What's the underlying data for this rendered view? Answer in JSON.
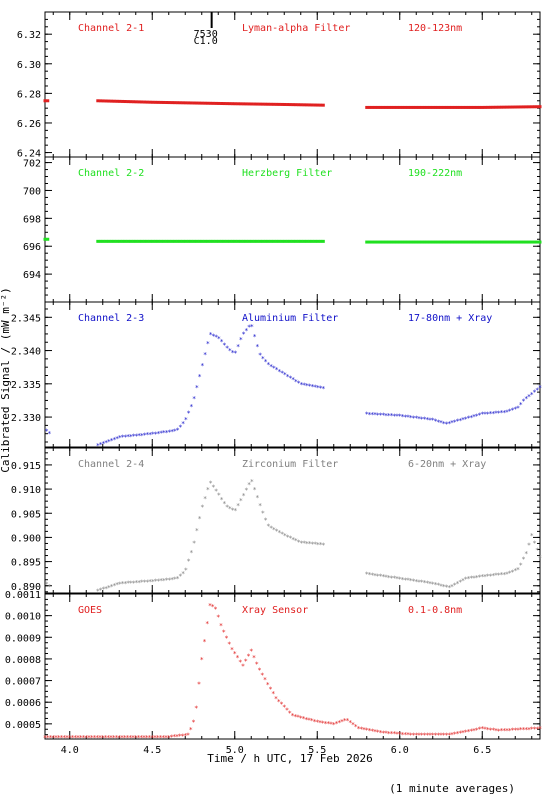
{
  "figure": {
    "xlabel": "Time / h UTC, 17 Feb 2026",
    "ylabel": "Calibrated Signal / (mW m⁻²)",
    "footnote": "(1 minute averages)",
    "event_marker": {
      "time": 4.86,
      "labels": [
        "7530",
        "C1.0"
      ]
    }
  },
  "chart_data": [
    {
      "type": "scatter",
      "channel": "Channel 2-1",
      "filter": "Lyman-alpha Filter",
      "band": "120-123nm",
      "color": "#e02020",
      "marker": "dot",
      "xlim": [
        3.85,
        6.85
      ],
      "ylim": [
        6.237,
        6.335
      ],
      "yticks": [
        6.24,
        6.26,
        6.28,
        6.3,
        6.32
      ],
      "ytick_labels": [
        "6.24",
        "6.26",
        "6.28",
        "6.30",
        "6.32"
      ],
      "grid": false,
      "series": [
        {
          "x": [
            3.85,
            3.87
          ],
          "y": [
            6.275,
            6.275
          ]
        },
        {
          "x": [
            4.17,
            4.5,
            5.0,
            5.3,
            5.55
          ],
          "y": [
            6.275,
            6.274,
            6.273,
            6.2725,
            6.272
          ]
        },
        {
          "x": [
            5.8,
            6.2,
            6.5,
            6.85
          ],
          "y": [
            6.2705,
            6.2705,
            6.2705,
            6.271
          ]
        }
      ]
    },
    {
      "type": "scatter",
      "channel": "Channel 2-2",
      "filter": "Herzberg Filter",
      "band": "190-222nm",
      "color": "#20e020",
      "marker": "dot",
      "xlim": [
        3.85,
        6.85
      ],
      "ylim": [
        692.0,
        702.4
      ],
      "yticks": [
        694,
        696,
        698,
        700,
        702
      ],
      "ytick_labels": [
        "694",
        "696",
        "698",
        "700",
        "702"
      ],
      "grid": false,
      "series": [
        {
          "x": [
            3.85,
            3.87
          ],
          "y": [
            696.5,
            696.5
          ]
        },
        {
          "x": [
            4.17,
            5.55
          ],
          "y": [
            696.35,
            696.35
          ]
        },
        {
          "x": [
            5.8,
            6.85
          ],
          "y": [
            696.3,
            696.3
          ]
        }
      ]
    },
    {
      "type": "scatter",
      "channel": "Channel 2-3",
      "filter": "Aluminium Filter",
      "band": "17-80nm + Xray",
      "color": "#1010c8",
      "marker": "star",
      "xlim": [
        3.85,
        6.85
      ],
      "ylim": [
        2.3255,
        2.3473
      ],
      "yticks": [
        2.33,
        2.335,
        2.34,
        2.345
      ],
      "ytick_labels": [
        "2.330",
        "2.335",
        "2.340",
        "2.345"
      ],
      "grid": false,
      "series": [
        {
          "x": [
            3.86,
            3.88
          ],
          "y": [
            2.328,
            2.3275
          ]
        },
        {
          "x": [
            4.17,
            4.3,
            4.5,
            4.65,
            4.7,
            4.75,
            4.8,
            4.85,
            4.9,
            4.95,
            5.0,
            5.05,
            5.1,
            5.15,
            5.2,
            5.3,
            5.4,
            5.55
          ],
          "y": [
            2.3258,
            2.327,
            2.3275,
            2.328,
            2.3295,
            2.3325,
            2.3375,
            2.3425,
            2.342,
            2.3405,
            2.3395,
            2.3425,
            2.344,
            2.3395,
            2.338,
            2.3365,
            2.335,
            2.3343
          ]
        },
        {
          "x": [
            5.8,
            6.0,
            6.2,
            6.28,
            6.4,
            6.5,
            6.65,
            6.72,
            6.75,
            6.8,
            6.85
          ],
          "y": [
            2.3305,
            2.3302,
            2.3296,
            2.329,
            2.3298,
            2.3305,
            2.3308,
            2.3315,
            2.3325,
            2.3335,
            2.3345
          ]
        }
      ]
    },
    {
      "type": "scatter",
      "channel": "Channel 2-4",
      "filter": "Zirconium Filter",
      "band": "6-20nm + Xray",
      "color": "#808080",
      "marker": "star",
      "xlim": [
        3.85,
        6.85
      ],
      "ylim": [
        0.8885,
        0.9185
      ],
      "yticks": [
        0.89,
        0.895,
        0.9,
        0.905,
        0.91,
        0.915
      ],
      "ytick_labels": [
        "0.890",
        "0.895",
        "0.900",
        "0.905",
        "0.910",
        "0.915"
      ],
      "grid": false,
      "series": [
        {
          "x": [
            3.86,
            3.88
          ],
          "y": [
            0.8905,
            0.8898
          ]
        },
        {
          "x": [
            4.17,
            4.3,
            4.5,
            4.65,
            4.7,
            4.75,
            4.8,
            4.85,
            4.9,
            4.95,
            5.0,
            5.05,
            5.1,
            5.15,
            5.2,
            5.3,
            5.4,
            5.55
          ],
          "y": [
            0.889,
            0.8905,
            0.891,
            0.8915,
            0.893,
            0.8985,
            0.906,
            0.9115,
            0.909,
            0.9065,
            0.9055,
            0.9085,
            0.912,
            0.907,
            0.9025,
            0.9005,
            0.899,
            0.8985
          ]
        },
        {
          "x": [
            5.8,
            6.0,
            6.2,
            6.3,
            6.4,
            6.5,
            6.65,
            6.72,
            6.77,
            6.8,
            6.85
          ],
          "y": [
            0.8925,
            0.8915,
            0.8905,
            0.8897,
            0.8915,
            0.892,
            0.8925,
            0.8935,
            0.897,
            0.9005,
            0.896
          ]
        }
      ]
    },
    {
      "type": "scatter",
      "channel": "GOES",
      "filter": "Xray Sensor",
      "band": "0.1-0.8nm",
      "color": "#e02020",
      "marker": "star",
      "xlim": [
        3.85,
        6.85
      ],
      "ylim": [
        0.00043,
        0.0011
      ],
      "yticks": [
        0.0005,
        0.0006,
        0.0007,
        0.0008,
        0.0009,
        0.001,
        0.0011
      ],
      "ytick_labels": [
        "0.0005",
        "0.0006",
        "0.0007",
        "0.0008",
        "0.0009",
        "0.0010",
        "0.0011"
      ],
      "grid": false,
      "series": [
        {
          "x": [
            3.85,
            4.3,
            4.6,
            4.72,
            4.76,
            4.8,
            4.85,
            4.88,
            4.92,
            4.98,
            5.05,
            5.1,
            5.15,
            5.25,
            5.35,
            5.5,
            5.6,
            5.68,
            5.75,
            5.9,
            6.1,
            6.3,
            6.5,
            6.6,
            6.85
          ],
          "y": [
            0.00044,
            0.00044,
            0.00044,
            0.00045,
            0.00053,
            0.0008,
            0.00105,
            0.00104,
            0.00095,
            0.00085,
            0.00077,
            0.00084,
            0.00075,
            0.00062,
            0.00054,
            0.00051,
            0.0005,
            0.00052,
            0.00048,
            0.00046,
            0.00045,
            0.00045,
            0.00048,
            0.00047,
            0.00048
          ]
        }
      ]
    }
  ]
}
